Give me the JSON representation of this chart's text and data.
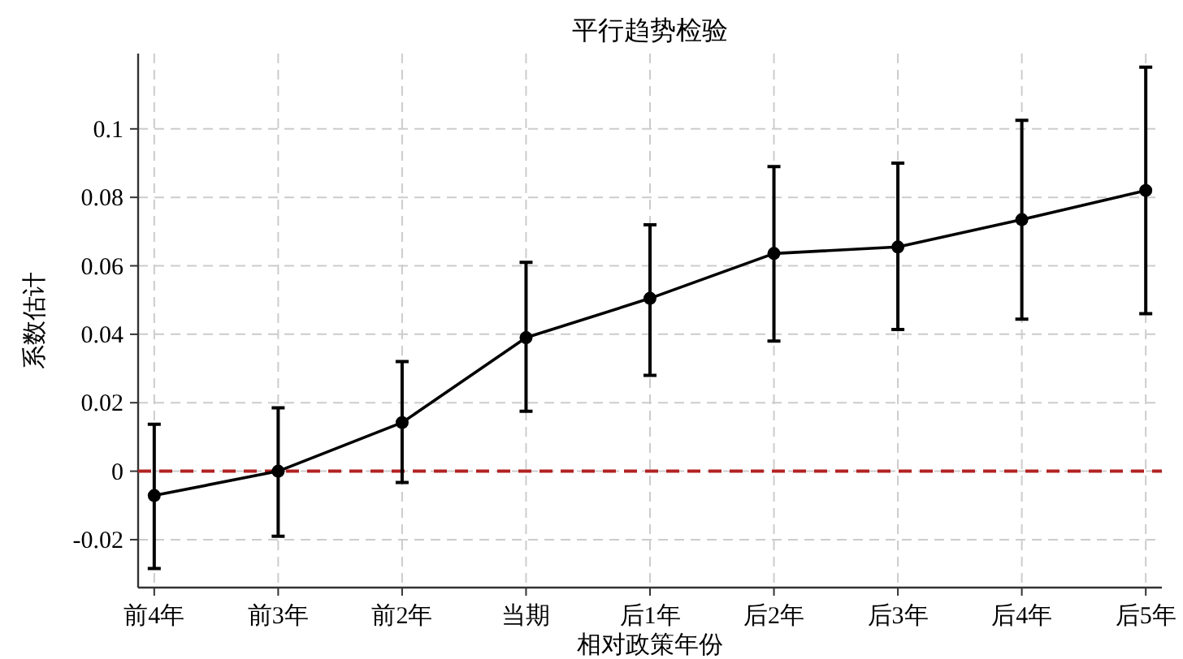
{
  "chart_data": {
    "type": "line",
    "title": "平行趋势检验",
    "xlabel": "相对政策年份",
    "ylabel": "系数估计",
    "categories": [
      "前4年",
      "前3年",
      "前2年",
      "当期",
      "后1年",
      "后2年",
      "后3年",
      "后4年",
      "后5年"
    ],
    "series": [
      {
        "color": "#000000",
        "values": [
          -0.0071,
          0,
          0.0142,
          0.039,
          0.0505,
          0.0636,
          0.0655,
          0.0735,
          0.082
        ],
        "errors": [
          [
            -0.0284,
            0.0137
          ],
          [
            -0.019,
            0.0185
          ],
          [
            -0.0033,
            0.032
          ],
          [
            0.0175,
            0.061
          ],
          [
            0.028,
            0.072
          ],
          [
            0.038,
            0.089
          ],
          [
            0.0414,
            0.09
          ],
          [
            0.0444,
            0.1025
          ],
          [
            0.046,
            0.118
          ]
        ]
      }
    ],
    "ylim": [
      -0.034,
      0.122
    ],
    "yticks": [
      {
        "value": -0.02,
        "label": "-0.02"
      },
      0,
      {
        "value": 0.02,
        "label": "0.02"
      },
      {
        "value": 0.04,
        "label": "0.04"
      },
      {
        "value": 0.06,
        "label": "0.06"
      },
      {
        "value": 0.08,
        "label": "0.08"
      },
      {
        "value": 0.1,
        "label": "0.1"
      }
    ],
    "ref_lines": [
      {
        "axis": "y",
        "value": 0,
        "color": "#b22222",
        "line_style": "dashed"
      }
    ],
    "grid": true,
    "marker": "circle",
    "line_style": "solid"
  }
}
